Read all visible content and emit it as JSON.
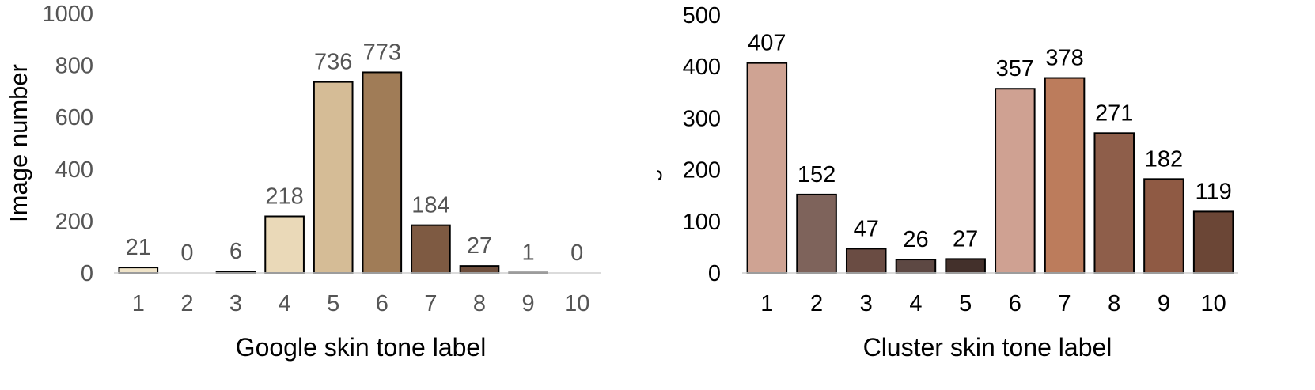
{
  "chart_data": [
    {
      "type": "bar",
      "categories": [
        "1",
        "2",
        "3",
        "4",
        "5",
        "6",
        "7",
        "8",
        "9",
        "10"
      ],
      "values": [
        21,
        0,
        6,
        218,
        736,
        773,
        184,
        27,
        1,
        0
      ],
      "bar_colors": [
        "#efe3c8",
        "#e9dabb",
        "#5a4a3a",
        "#ead9b8",
        "#d5bc96",
        "#a07c57",
        "#7e5a42",
        "#6e4e3c",
        "#aaaaaa",
        "#dddddd"
      ],
      "data_labels": [
        "21",
        "0",
        "6",
        "218",
        "736",
        "773",
        "184",
        "27",
        "1",
        "0"
      ],
      "xlabel": "Google skin tone label",
      "ylabel": "Image number",
      "ylim": [
        0,
        1000
      ],
      "yticks": [
        "0",
        "200",
        "400",
        "600",
        "800",
        "1000"
      ],
      "text_color": "#555555",
      "grid": false
    },
    {
      "type": "bar",
      "categories": [
        "1",
        "2",
        "3",
        "4",
        "5",
        "6",
        "7",
        "8",
        "9",
        "10"
      ],
      "values": [
        407,
        152,
        47,
        26,
        27,
        357,
        378,
        271,
        182,
        119
      ],
      "bar_colors": [
        "#cfa393",
        "#7e635b",
        "#6a4c43",
        "#5d4843",
        "#43302b",
        "#cfa192",
        "#bc7c5c",
        "#8e5e4a",
        "#8f5a44",
        "#6b4636"
      ],
      "data_labels": [
        "407",
        "152",
        "47",
        "26",
        "27",
        "357",
        "378",
        "271",
        "182",
        "119"
      ],
      "xlabel": "Cluster skin tone label",
      "ylabel": "Image number",
      "ylim": [
        0,
        500
      ],
      "yticks": [
        "0",
        "100",
        "200",
        "300",
        "400",
        "500"
      ],
      "text_color": "#000000",
      "grid": false
    }
  ]
}
